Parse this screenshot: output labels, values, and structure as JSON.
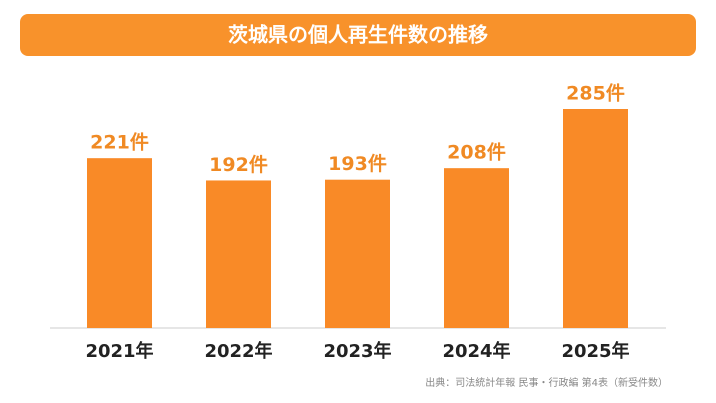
{
  "chart_data": {
    "type": "bar",
    "title": "茨城県の個人再生件数の推移",
    "categories": [
      "2021年",
      "2022年",
      "2023年",
      "2024年",
      "2025年"
    ],
    "values": [
      221,
      192,
      193,
      208,
      285
    ],
    "value_labels": [
      "221件",
      "192件",
      "193件",
      "208件",
      "285件"
    ],
    "color": "#f98a27",
    "source": "出典：司法統計年報 民事・行政編 第4表（新受件数）"
  }
}
